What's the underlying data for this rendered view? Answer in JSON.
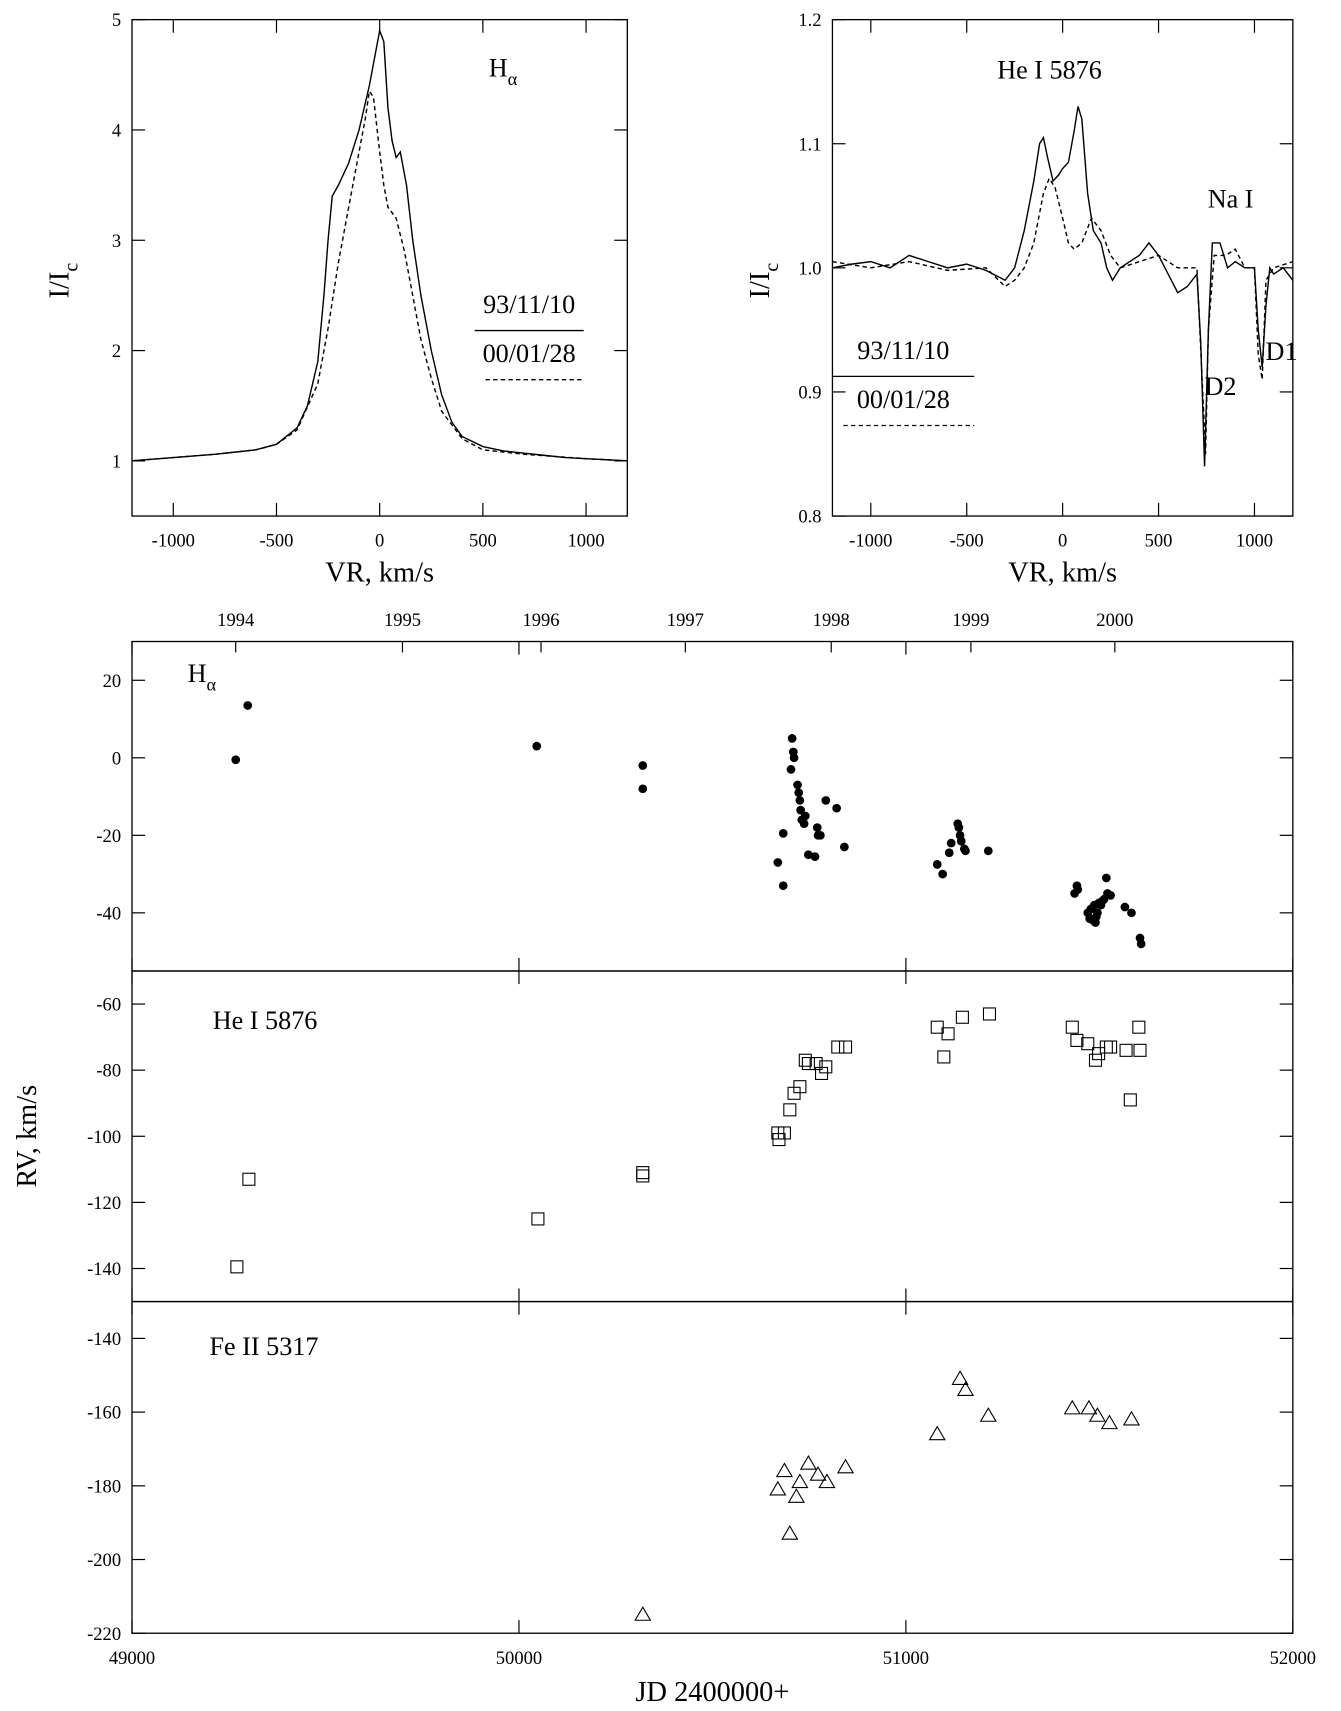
{
  "chart_data": [
    {
      "type": "line",
      "xlabel": "VR, km/s",
      "ylabel": {
        "text": "I/I",
        "sub": "c"
      },
      "annotation": {
        "text": "H",
        "sub": "α"
      },
      "xlim": [
        -1200,
        1200
      ],
      "xticks": [
        -1000,
        -500,
        0,
        500,
        1000
      ],
      "ylim": [
        0.5,
        5
      ],
      "yticks": [
        1,
        2,
        3,
        4,
        5
      ],
      "series": [
        {
          "name": "93/11/10",
          "dash": "solid",
          "color": "#000",
          "x": [
            -1200,
            -1000,
            -800,
            -700,
            -600,
            -500,
            -400,
            -350,
            -300,
            -270,
            -250,
            -230,
            -200,
            -150,
            -100,
            -50,
            -20,
            0,
            20,
            40,
            60,
            80,
            100,
            130,
            160,
            200,
            250,
            300,
            350,
            400,
            500,
            600,
            700,
            800,
            900,
            1000,
            1100,
            1200
          ],
          "values": [
            1.0,
            1.03,
            1.06,
            1.08,
            1.1,
            1.15,
            1.3,
            1.5,
            1.9,
            2.5,
            3.0,
            3.4,
            3.5,
            3.7,
            4.0,
            4.4,
            4.7,
            4.9,
            4.8,
            4.2,
            3.9,
            3.75,
            3.8,
            3.5,
            3.0,
            2.5,
            2.0,
            1.6,
            1.35,
            1.22,
            1.13,
            1.09,
            1.07,
            1.05,
            1.03,
            1.02,
            1.01,
            1.0
          ]
        },
        {
          "name": "00/01/28",
          "dash": "dashed",
          "color": "#000",
          "x": [
            -1200,
            -800,
            -600,
            -500,
            -400,
            -300,
            -250,
            -200,
            -150,
            -100,
            -70,
            -50,
            -30,
            0,
            20,
            40,
            80,
            120,
            160,
            200,
            250,
            300,
            400,
            500,
            700,
            1000,
            1200
          ],
          "values": [
            1.0,
            1.06,
            1.1,
            1.15,
            1.28,
            1.7,
            2.2,
            2.8,
            3.3,
            3.8,
            4.1,
            4.35,
            4.3,
            3.8,
            3.5,
            3.3,
            3.2,
            2.9,
            2.5,
            2.1,
            1.75,
            1.45,
            1.2,
            1.1,
            1.06,
            1.02,
            1.0
          ]
        }
      ]
    },
    {
      "type": "line",
      "xlabel": "VR, km/s",
      "ylabel": {
        "text": "I/I",
        "sub": "c"
      },
      "annotations": [
        "He I 5876",
        "Na I",
        "D2",
        "D1"
      ],
      "xlim": [
        -1200,
        1200
      ],
      "xticks": [
        -1000,
        -500,
        0,
        500,
        1000
      ],
      "ylim": [
        0.8,
        1.2
      ],
      "yticks": [
        0.8,
        0.9,
        {
          "value": 1,
          "label": "1.0"
        },
        1.1,
        1.2
      ],
      "series": [
        {
          "name": "93/11/10",
          "dash": "solid",
          "color": "#000",
          "x": [
            -1200,
            -1100,
            -1000,
            -900,
            -800,
            -700,
            -600,
            -500,
            -400,
            -300,
            -250,
            -200,
            -150,
            -120,
            -100,
            -80,
            -50,
            -20,
            0,
            30,
            60,
            80,
            100,
            130,
            160,
            200,
            230,
            260,
            300,
            350,
            400,
            450,
            500,
            550,
            600,
            650,
            700,
            720,
            740,
            760,
            780,
            820,
            860,
            900,
            950,
            1000,
            1020,
            1040,
            1060,
            1080,
            1100,
            1150,
            1200
          ],
          "values": [
            1.0,
            1.003,
            1.005,
            1.0,
            1.01,
            1.005,
            1.0,
            1.003,
            0.998,
            0.99,
            1.0,
            1.03,
            1.07,
            1.1,
            1.105,
            1.09,
            1.07,
            1.075,
            1.08,
            1.085,
            1.11,
            1.13,
            1.12,
            1.06,
            1.03,
            1.02,
            1.0,
            0.99,
            1.0,
            1.005,
            1.01,
            1.02,
            1.01,
            0.995,
            0.98,
            0.985,
            0.995,
            0.94,
            0.84,
            0.95,
            1.02,
            1.02,
            1.0,
            1.005,
            1.0,
            1.0,
            0.95,
            0.92,
            0.97,
            1.0,
            0.995,
            1.0,
            0.99
          ]
        },
        {
          "name": "00/01/28",
          "dash": "dashed",
          "color": "#000",
          "x": [
            -1200,
            -1000,
            -800,
            -600,
            -400,
            -300,
            -250,
            -200,
            -150,
            -100,
            -70,
            -40,
            0,
            30,
            60,
            100,
            150,
            200,
            250,
            300,
            400,
            500,
            600,
            700,
            730,
            745,
            760,
            790,
            850,
            900,
            950,
            1000,
            1020,
            1040,
            1060,
            1100,
            1200
          ],
          "values": [
            1.005,
            1.0,
            1.005,
            0.998,
            1.0,
            0.985,
            0.99,
            1.0,
            1.02,
            1.06,
            1.072,
            1.065,
            1.04,
            1.02,
            1.015,
            1.02,
            1.04,
            1.03,
            1.01,
            1.0,
            1.005,
            1.01,
            1.0,
            1.0,
            0.9,
            0.85,
            0.95,
            1.01,
            1.01,
            1.015,
            1.0,
            1.0,
            0.93,
            0.91,
            0.99,
            1.0,
            1.005
          ]
        }
      ]
    },
    {
      "type": "scatter",
      "marker": "circle",
      "annotation": {
        "text": "H",
        "sub": "α"
      },
      "xlim": [
        49000,
        52000
      ],
      "ylim": [
        -55,
        30
      ],
      "yticks": [
        -40,
        -20,
        0,
        20
      ],
      "x2ticks": [
        {
          "value": 49268,
          "label": "1994"
        },
        {
          "value": 49699,
          "label": "1995"
        },
        {
          "value": 50057,
          "label": "1996"
        },
        {
          "value": 50430,
          "label": "1997"
        },
        {
          "value": 50807,
          "label": "1998"
        },
        {
          "value": 51168,
          "label": "1999"
        },
        {
          "value": 51540,
          "label": "2000"
        }
      ],
      "x": [
        49268,
        49299,
        50046,
        50320,
        50320,
        50669,
        50683,
        50683,
        50703,
        50706,
        50709,
        50711,
        50720,
        50723,
        50726,
        50728,
        50731,
        50737,
        50740,
        50748,
        50765,
        50771,
        50773,
        50779,
        50793,
        50821,
        50841,
        51081,
        51095,
        51112,
        51117,
        51134,
        51137,
        51140,
        51143,
        51151,
        51154,
        51213,
        51436,
        51442,
        51444,
        51470,
        51475,
        51478,
        51484,
        51487,
        51490,
        51492,
        51495,
        51498,
        51504,
        51507,
        51512,
        51518,
        51521,
        51529,
        51566,
        51583,
        51605,
        51608
      ],
      "values": [
        -0.5,
        13.5,
        3,
        -2,
        -8,
        -27,
        -19.5,
        -33,
        -3,
        5,
        1.5,
        0,
        -7,
        -9,
        -11,
        -13.5,
        -16,
        -17,
        -15,
        -25,
        -25.5,
        -18,
        -20,
        -20,
        -11,
        -13,
        -23,
        -27.5,
        -30,
        -24.5,
        -22,
        -17,
        -18,
        -20,
        -21.5,
        -23.5,
        -24,
        -24,
        -35,
        -33,
        -34,
        -40,
        -41.5,
        -39,
        -42,
        -38,
        -42.5,
        -41,
        -40,
        -37.5,
        -38,
        -37,
        -36.5,
        -31,
        -35,
        -35.5,
        -38.5,
        -40,
        -46.5,
        -48
      ]
    },
    {
      "type": "scatter",
      "marker": "square",
      "annotation": "He I 5876",
      "ylabel": "RV, km/s",
      "xlim": [
        49000,
        52000
      ],
      "ylim": [
        -150,
        -50
      ],
      "yticks": [
        -140,
        -120,
        -100,
        -80,
        -60
      ],
      "x": [
        49271,
        49302,
        50049,
        50320,
        50320,
        50669,
        50672,
        50686,
        50700,
        50711,
        50726,
        50740,
        50748,
        50768,
        50782,
        50793,
        50824,
        50844,
        51081,
        51098,
        51109,
        51146,
        51216,
        51430,
        51442,
        51470,
        51490,
        51498,
        51518,
        51529,
        51569,
        51580,
        51602,
        51605
      ],
      "values": [
        -139.5,
        -113,
        -125,
        -112,
        -111,
        -99,
        -101,
        -99,
        -92,
        -87,
        -85,
        -77,
        -78,
        -78,
        -81,
        -79,
        -73,
        -73,
        -67,
        -76,
        -69,
        -64,
        -63,
        -67,
        -71,
        -72,
        -77,
        -75,
        -73,
        -73,
        -74,
        -89,
        -67,
        -74
      ]
    },
    {
      "type": "scatter",
      "marker": "triangle",
      "annotation": "Fe II 5317",
      "xlabel": "JD 2400000+",
      "xlim": [
        49000,
        52000
      ],
      "xticks": [
        49000,
        50000,
        51000,
        52000
      ],
      "ylim": [
        -220,
        -130
      ],
      "yticks": [
        -220,
        -200,
        -180,
        -160,
        -140
      ],
      "x": [
        50320,
        50669,
        50686,
        50700,
        50717,
        50726,
        50748,
        50773,
        50796,
        50844,
        51081,
        51140,
        51154,
        51213,
        51430,
        51473,
        51495,
        51526,
        51583
      ],
      "values": [
        -215,
        -181,
        -176,
        -193,
        -183,
        -179,
        -174,
        -177,
        -179,
        -175,
        -166,
        -151,
        -154,
        -161,
        -159,
        -159,
        -161,
        -163,
        -162
      ]
    }
  ]
}
